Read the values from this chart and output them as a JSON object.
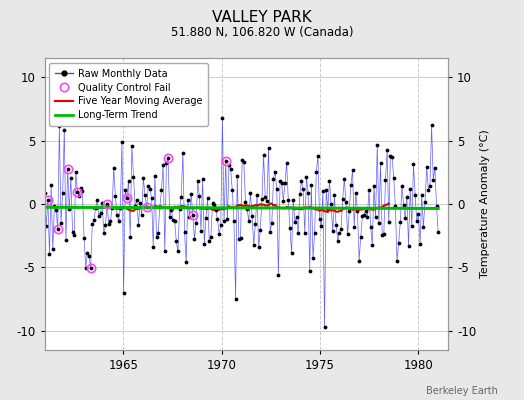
{
  "title": "VALLEY PARK",
  "subtitle": "51.880 N, 106.820 W (Canada)",
  "ylabel": "Temperature Anomaly (°C)",
  "watermark": "Berkeley Earth",
  "xlim": [
    1961.0,
    1981.5
  ],
  "ylim": [
    -11.5,
    11.5
  ],
  "yticks": [
    -10,
    -5,
    0,
    5,
    10
  ],
  "xticks": [
    1965,
    1970,
    1975,
    1980
  ],
  "bg_color": "#e8e8e8",
  "plot_bg_color": "#ffffff",
  "grid_color": "#cccccc",
  "line_color": "#4444ff",
  "marker_color": "#000000",
  "ma_color": "#dd0000",
  "trend_color": "#00bb00",
  "qc_color": "#ff44ff",
  "seed": 12,
  "n_months": 240,
  "start_year": 1961.0,
  "end_year": 1981.0
}
